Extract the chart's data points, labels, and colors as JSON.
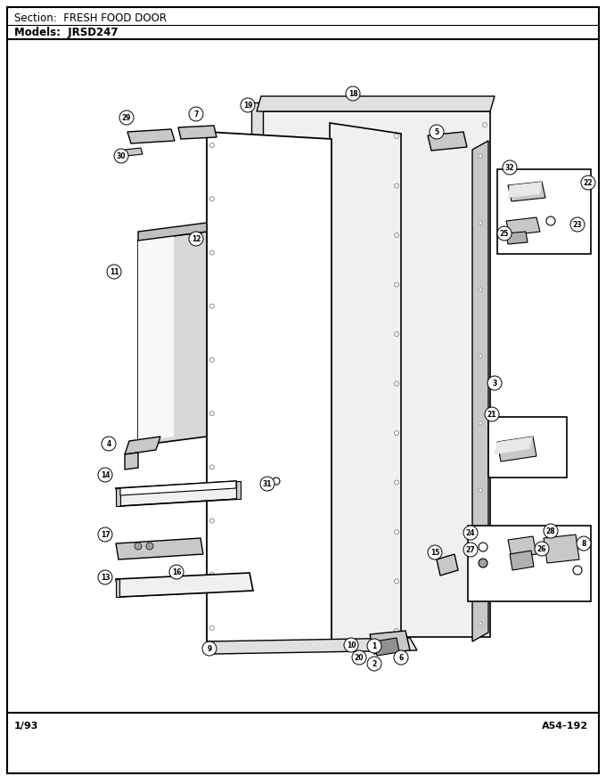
{
  "section_label": "Section:  FRESH FOOD DOOR",
  "models_label": "Models:  JRSD247",
  "footer_left": "1/93",
  "footer_right": "A54-192",
  "bg_color": "#ffffff",
  "border_color": "#000000",
  "text_color": "#000000"
}
